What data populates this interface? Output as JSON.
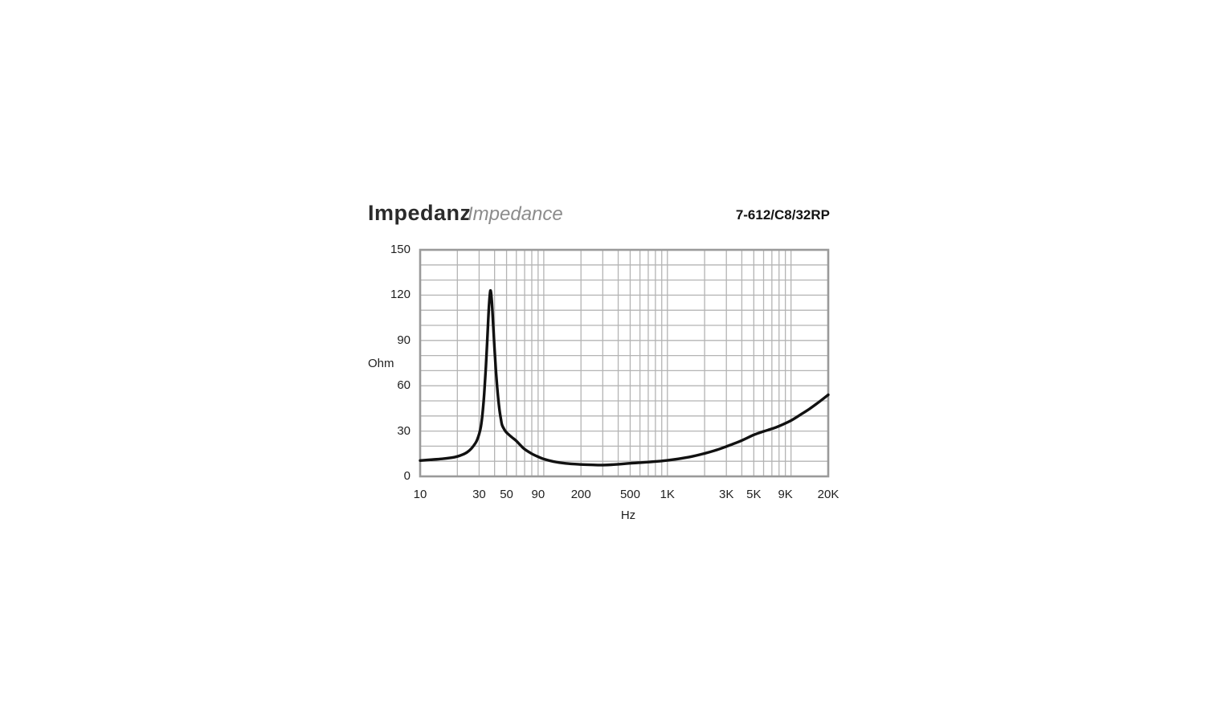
{
  "header": {
    "title_de": "Impedanz",
    "title_en": "Impedance",
    "model": "7-612/C8/32RP"
  },
  "axes": {
    "y_unit": "Ohm",
    "x_unit": "Hz"
  },
  "style": {
    "background": "#ffffff",
    "grid_color": "#b4b4b4",
    "border_color": "#9a9a9a",
    "curve_color": "#111111",
    "title_color": "#2b2b2b",
    "subtitle_color": "#8c8c8c",
    "label_color": "#1f1f1f"
  },
  "chart_data": {
    "type": "line",
    "title": "Impedanz / Impedance",
    "subtitle_model": "7-612/C8/32RP",
    "xlabel": "Hz",
    "ylabel": "Ohm",
    "x_scale": "log",
    "x_range": [
      10,
      20000
    ],
    "y_range": [
      0,
      150
    ],
    "y_grid_step": 10,
    "grid": true,
    "legend": "none",
    "x_grid_frequencies": [
      10,
      20,
      30,
      40,
      50,
      60,
      70,
      80,
      90,
      100,
      200,
      300,
      400,
      500,
      600,
      700,
      800,
      900,
      1000,
      2000,
      3000,
      4000,
      5000,
      6000,
      7000,
      8000,
      9000,
      10000,
      20000
    ],
    "x_ticks": [
      {
        "value": 10,
        "label": "10"
      },
      {
        "value": 30,
        "label": "30"
      },
      {
        "value": 50,
        "label": "50"
      },
      {
        "value": 90,
        "label": "90"
      },
      {
        "value": 200,
        "label": "200"
      },
      {
        "value": 500,
        "label": "500"
      },
      {
        "value": 1000,
        "label": "1K"
      },
      {
        "value": 3000,
        "label": "3K"
      },
      {
        "value": 5000,
        "label": "5K"
      },
      {
        "value": 9000,
        "label": "9K"
      },
      {
        "value": 20000,
        "label": "20K"
      }
    ],
    "y_ticks": [
      {
        "value": 0,
        "label": "0"
      },
      {
        "value": 30,
        "label": "30"
      },
      {
        "value": 60,
        "label": "60"
      },
      {
        "value": 90,
        "label": "90"
      },
      {
        "value": 120,
        "label": "120"
      },
      {
        "value": 150,
        "label": "150"
      }
    ],
    "series": [
      {
        "name": "impedance-curve",
        "units": {
          "x": "Hz",
          "y": "Ohm"
        },
        "points": [
          [
            10,
            10.5
          ],
          [
            12,
            11
          ],
          [
            15,
            11.6
          ],
          [
            18,
            12.4
          ],
          [
            20,
            13.2
          ],
          [
            22,
            14.4
          ],
          [
            24,
            16
          ],
          [
            26,
            18.5
          ],
          [
            28,
            22
          ],
          [
            29,
            24.5
          ],
          [
            30,
            28
          ],
          [
            31,
            33
          ],
          [
            32,
            42
          ],
          [
            33,
            55
          ],
          [
            34,
            72
          ],
          [
            35,
            92
          ],
          [
            36,
            112
          ],
          [
            37,
            123
          ],
          [
            38,
            116
          ],
          [
            39,
            100
          ],
          [
            40,
            84
          ],
          [
            41,
            70
          ],
          [
            42,
            59
          ],
          [
            43,
            50
          ],
          [
            44,
            43
          ],
          [
            45,
            38
          ],
          [
            46,
            34
          ],
          [
            48,
            31
          ],
          [
            50,
            29
          ],
          [
            55,
            26
          ],
          [
            60,
            23.5
          ],
          [
            65,
            20.5
          ],
          [
            70,
            18
          ],
          [
            80,
            15
          ],
          [
            90,
            13
          ],
          [
            100,
            11.5
          ],
          [
            120,
            9.8
          ],
          [
            150,
            8.6
          ],
          [
            200,
            7.9
          ],
          [
            250,
            7.6
          ],
          [
            300,
            7.5
          ],
          [
            400,
            8
          ],
          [
            500,
            8.7
          ],
          [
            700,
            9.5
          ],
          [
            1000,
            10.6
          ],
          [
            1500,
            12.8
          ],
          [
            2000,
            15.2
          ],
          [
            2500,
            17.5
          ],
          [
            3000,
            19.8
          ],
          [
            4000,
            23.8
          ],
          [
            5000,
            27.5
          ],
          [
            6000,
            29.8
          ],
          [
            7000,
            31.5
          ],
          [
            8000,
            33.3
          ],
          [
            10000,
            37
          ],
          [
            12000,
            41
          ],
          [
            14000,
            44.5
          ],
          [
            17000,
            49.5
          ],
          [
            20000,
            54
          ]
        ]
      }
    ]
  }
}
